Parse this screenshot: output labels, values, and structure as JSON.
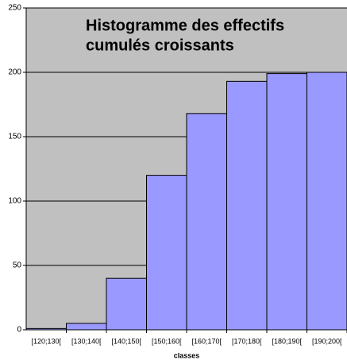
{
  "chart_data": {
    "type": "bar",
    "title": [
      "Histogramme des effectifs",
      "cumulés croissants"
    ],
    "x_label": "classes",
    "categories": [
      "[120;130[",
      "[130;140[",
      "[140;150[",
      "[150;160[",
      "[160;170[",
      "[170;180[",
      "[180;190[",
      "[190;200["
    ],
    "values": [
      1,
      5,
      40,
      120,
      168,
      193,
      199,
      200
    ],
    "color": "#9999ff",
    "ylim": [
      0,
      250
    ],
    "yticks": [
      0,
      50,
      100,
      150,
      200,
      250
    ],
    "grid": true
  }
}
